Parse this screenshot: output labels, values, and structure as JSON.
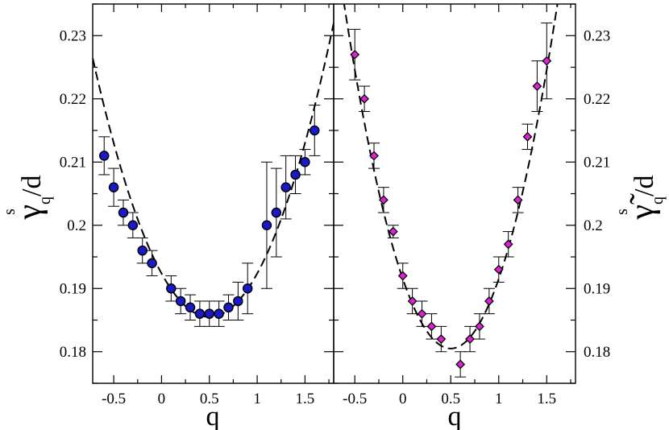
{
  "chart_data": [
    {
      "type": "scatter",
      "panel": "left",
      "xlabel": "q",
      "ylabel": {
        "base": "γ",
        "superscript": "s",
        "subscript": "q",
        "suffix": "/d"
      },
      "xlim": [
        -0.72,
        1.8
      ],
      "ylim": [
        0.175,
        0.235
      ],
      "xticks": [
        "-0.5",
        "0",
        "0.5",
        "1",
        "1.5"
      ],
      "yticks": [
        "0.18",
        "0.19",
        "0.2",
        "0.21",
        "0.22",
        "0.23"
      ],
      "tick_positions_x": [
        -0.5,
        0,
        0.5,
        1,
        1.5
      ],
      "tick_positions_y": [
        0.18,
        0.19,
        0.2,
        0.21,
        0.22,
        0.23
      ],
      "marker": "circle",
      "marker_color": "#1a1acc",
      "series": [
        {
          "points": [
            {
              "x": -0.6,
              "y": 0.211,
              "err": 0.003
            },
            {
              "x": -0.5,
              "y": 0.206,
              "err": 0.003
            },
            {
              "x": -0.4,
              "y": 0.202,
              "err": 0.002
            },
            {
              "x": -0.3,
              "y": 0.2,
              "err": 0.002
            },
            {
              "x": -0.2,
              "y": 0.196,
              "err": 0.002
            },
            {
              "x": -0.1,
              "y": 0.194,
              "err": 0.002
            },
            {
              "x": 0.1,
              "y": 0.19,
              "err": 0.002
            },
            {
              "x": 0.2,
              "y": 0.188,
              "err": 0.002
            },
            {
              "x": 0.3,
              "y": 0.187,
              "err": 0.002
            },
            {
              "x": 0.4,
              "y": 0.186,
              "err": 0.002
            },
            {
              "x": 0.5,
              "y": 0.186,
              "err": 0.002
            },
            {
              "x": 0.6,
              "y": 0.186,
              "err": 0.002
            },
            {
              "x": 0.7,
              "y": 0.187,
              "err": 0.002
            },
            {
              "x": 0.8,
              "y": 0.188,
              "err": 0.003
            },
            {
              "x": 0.9,
              "y": 0.19,
              "err": 0.004
            },
            {
              "x": 1.1,
              "y": 0.2,
              "err": 0.01
            },
            {
              "x": 1.2,
              "y": 0.202,
              "err": 0.007
            },
            {
              "x": 1.3,
              "y": 0.206,
              "err": 0.005
            },
            {
              "x": 1.4,
              "y": 0.208,
              "err": 0.003
            },
            {
              "x": 1.5,
              "y": 0.21,
              "err": 0.002
            },
            {
              "x": 1.6,
              "y": 0.215,
              "err": 0.004
            }
          ]
        }
      ],
      "fit": {
        "style": "dashed",
        "vertex_x": 0.5,
        "vertex_y": 0.1855,
        "curvature": 0.0275
      }
    },
    {
      "type": "scatter",
      "panel": "right",
      "xlabel": "q",
      "ylabel": {
        "base": "γ̃",
        "superscript": "s",
        "subscript": "q",
        "suffix": "/d"
      },
      "xlim": [
        -0.72,
        1.8
      ],
      "ylim": [
        0.175,
        0.235
      ],
      "xticks": [
        "-0.5",
        "0",
        "0.5",
        "1",
        "1.5"
      ],
      "yticks": [
        "0.18",
        "0.19",
        "0.2",
        "0.21",
        "0.22",
        "0.23"
      ],
      "tick_positions_x": [
        -0.5,
        0,
        0.5,
        1,
        1.5
      ],
      "tick_positions_y": [
        0.18,
        0.19,
        0.2,
        0.21,
        0.22,
        0.23
      ],
      "marker": "diamond",
      "marker_color": "#e020d8",
      "series": [
        {
          "points": [
            {
              "x": -0.5,
              "y": 0.227,
              "err": 0.004
            },
            {
              "x": -0.4,
              "y": 0.22,
              "err": 0.002
            },
            {
              "x": -0.3,
              "y": 0.211,
              "err": 0.002
            },
            {
              "x": -0.2,
              "y": 0.204,
              "err": 0.002
            },
            {
              "x": -0.1,
              "y": 0.199,
              "err": 0.001
            },
            {
              "x": 0.0,
              "y": 0.192,
              "err": 0.002
            },
            {
              "x": 0.1,
              "y": 0.188,
              "err": 0.002
            },
            {
              "x": 0.2,
              "y": 0.186,
              "err": 0.002
            },
            {
              "x": 0.3,
              "y": 0.184,
              "err": 0.002
            },
            {
              "x": 0.4,
              "y": 0.182,
              "err": 0.002
            },
            {
              "x": 0.6,
              "y": 0.178,
              "err": 0.002
            },
            {
              "x": 0.7,
              "y": 0.182,
              "err": 0.002
            },
            {
              "x": 0.8,
              "y": 0.184,
              "err": 0.002
            },
            {
              "x": 0.9,
              "y": 0.188,
              "err": 0.002
            },
            {
              "x": 1.0,
              "y": 0.193,
              "err": 0.002
            },
            {
              "x": 1.1,
              "y": 0.197,
              "err": 0.002
            },
            {
              "x": 1.2,
              "y": 0.204,
              "err": 0.002
            },
            {
              "x": 1.3,
              "y": 0.214,
              "err": 0.002
            },
            {
              "x": 1.4,
              "y": 0.222,
              "err": 0.004
            },
            {
              "x": 1.5,
              "y": 0.226,
              "err": 0.006
            }
          ]
        }
      ],
      "fit": {
        "style": "dashed",
        "vertex_x": 0.5,
        "vertex_y": 0.1805,
        "curvature": 0.0441
      }
    }
  ]
}
